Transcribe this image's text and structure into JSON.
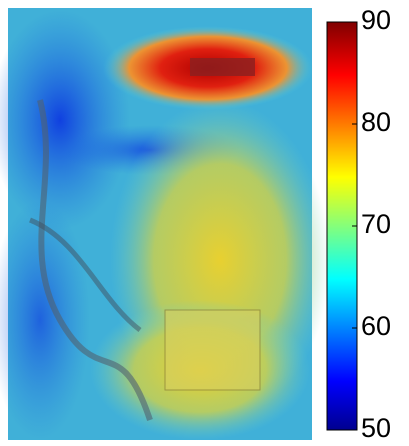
{
  "colorbar": {
    "lim": [
      50,
      90
    ],
    "ticks": [
      50,
      60,
      70,
      80,
      90
    ]
  }
}
